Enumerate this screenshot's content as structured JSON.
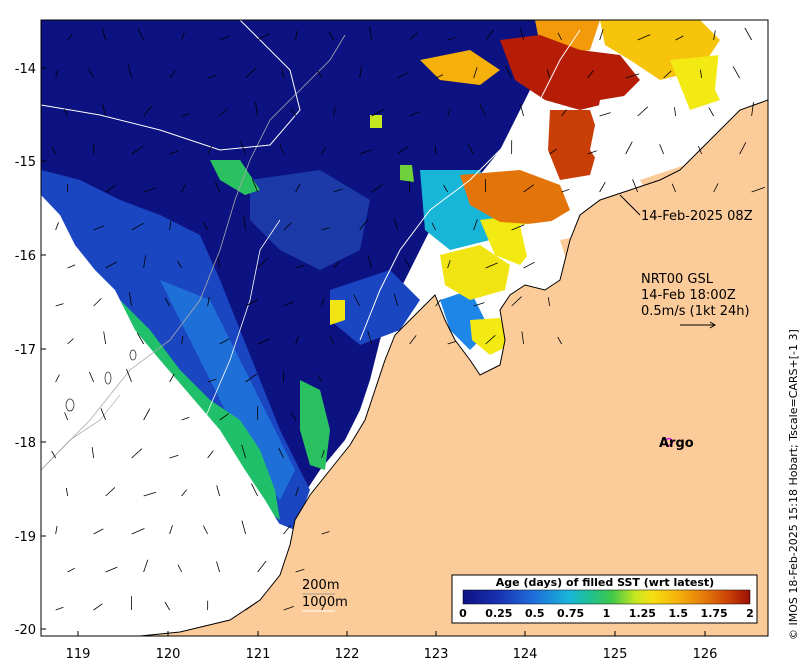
{
  "axes": {
    "y_ticks": [
      "-14",
      "-15",
      "-16",
      "-17",
      "-18",
      "-19",
      "-20"
    ],
    "x_ticks": [
      "119",
      "120",
      "121",
      "122",
      "123",
      "124",
      "125",
      "126"
    ]
  },
  "annotations": {
    "swath_time": "14-Feb-2025 08Z",
    "current_title": "NRT00 GSL",
    "current_time": "14-Feb 18:00Z",
    "current_scale": "0.5m/s (1kt 24h)",
    "argo_label": "Argo",
    "isobath_200": "200m",
    "isobath_1000": "1000m"
  },
  "colorbar": {
    "title": "Age (days) of filled SST (wrt latest)",
    "ticks": [
      "0",
      "0.25",
      "0.5",
      "0.75",
      "1",
      "1.25",
      "1.5",
      "1.75",
      "2"
    ],
    "colors": [
      "#0d1282",
      "#1930b0",
      "#1f55cf",
      "#1d86e6",
      "#17b5d8",
      "#20c09a",
      "#2ac260",
      "#6fd23a",
      "#c6e620",
      "#f2ea12",
      "#f6c40b",
      "#f29a0a",
      "#e36d09",
      "#c93e07",
      "#9b0f05"
    ]
  },
  "credit": "© IMOS 18-Feb-2025 15:18 Hobart; Tscale=CARS+[-1 3]",
  "colors": {
    "land": "#fccb9a",
    "deep": "#0d1282",
    "mid": "#1b46c2",
    "light": "#1f86e6",
    "cyan": "#17c0e6",
    "green": "#20c06a",
    "yellow": "#f0e412",
    "orange": "#e3740a",
    "red": "#b51d06",
    "argo": "#e020e0"
  }
}
